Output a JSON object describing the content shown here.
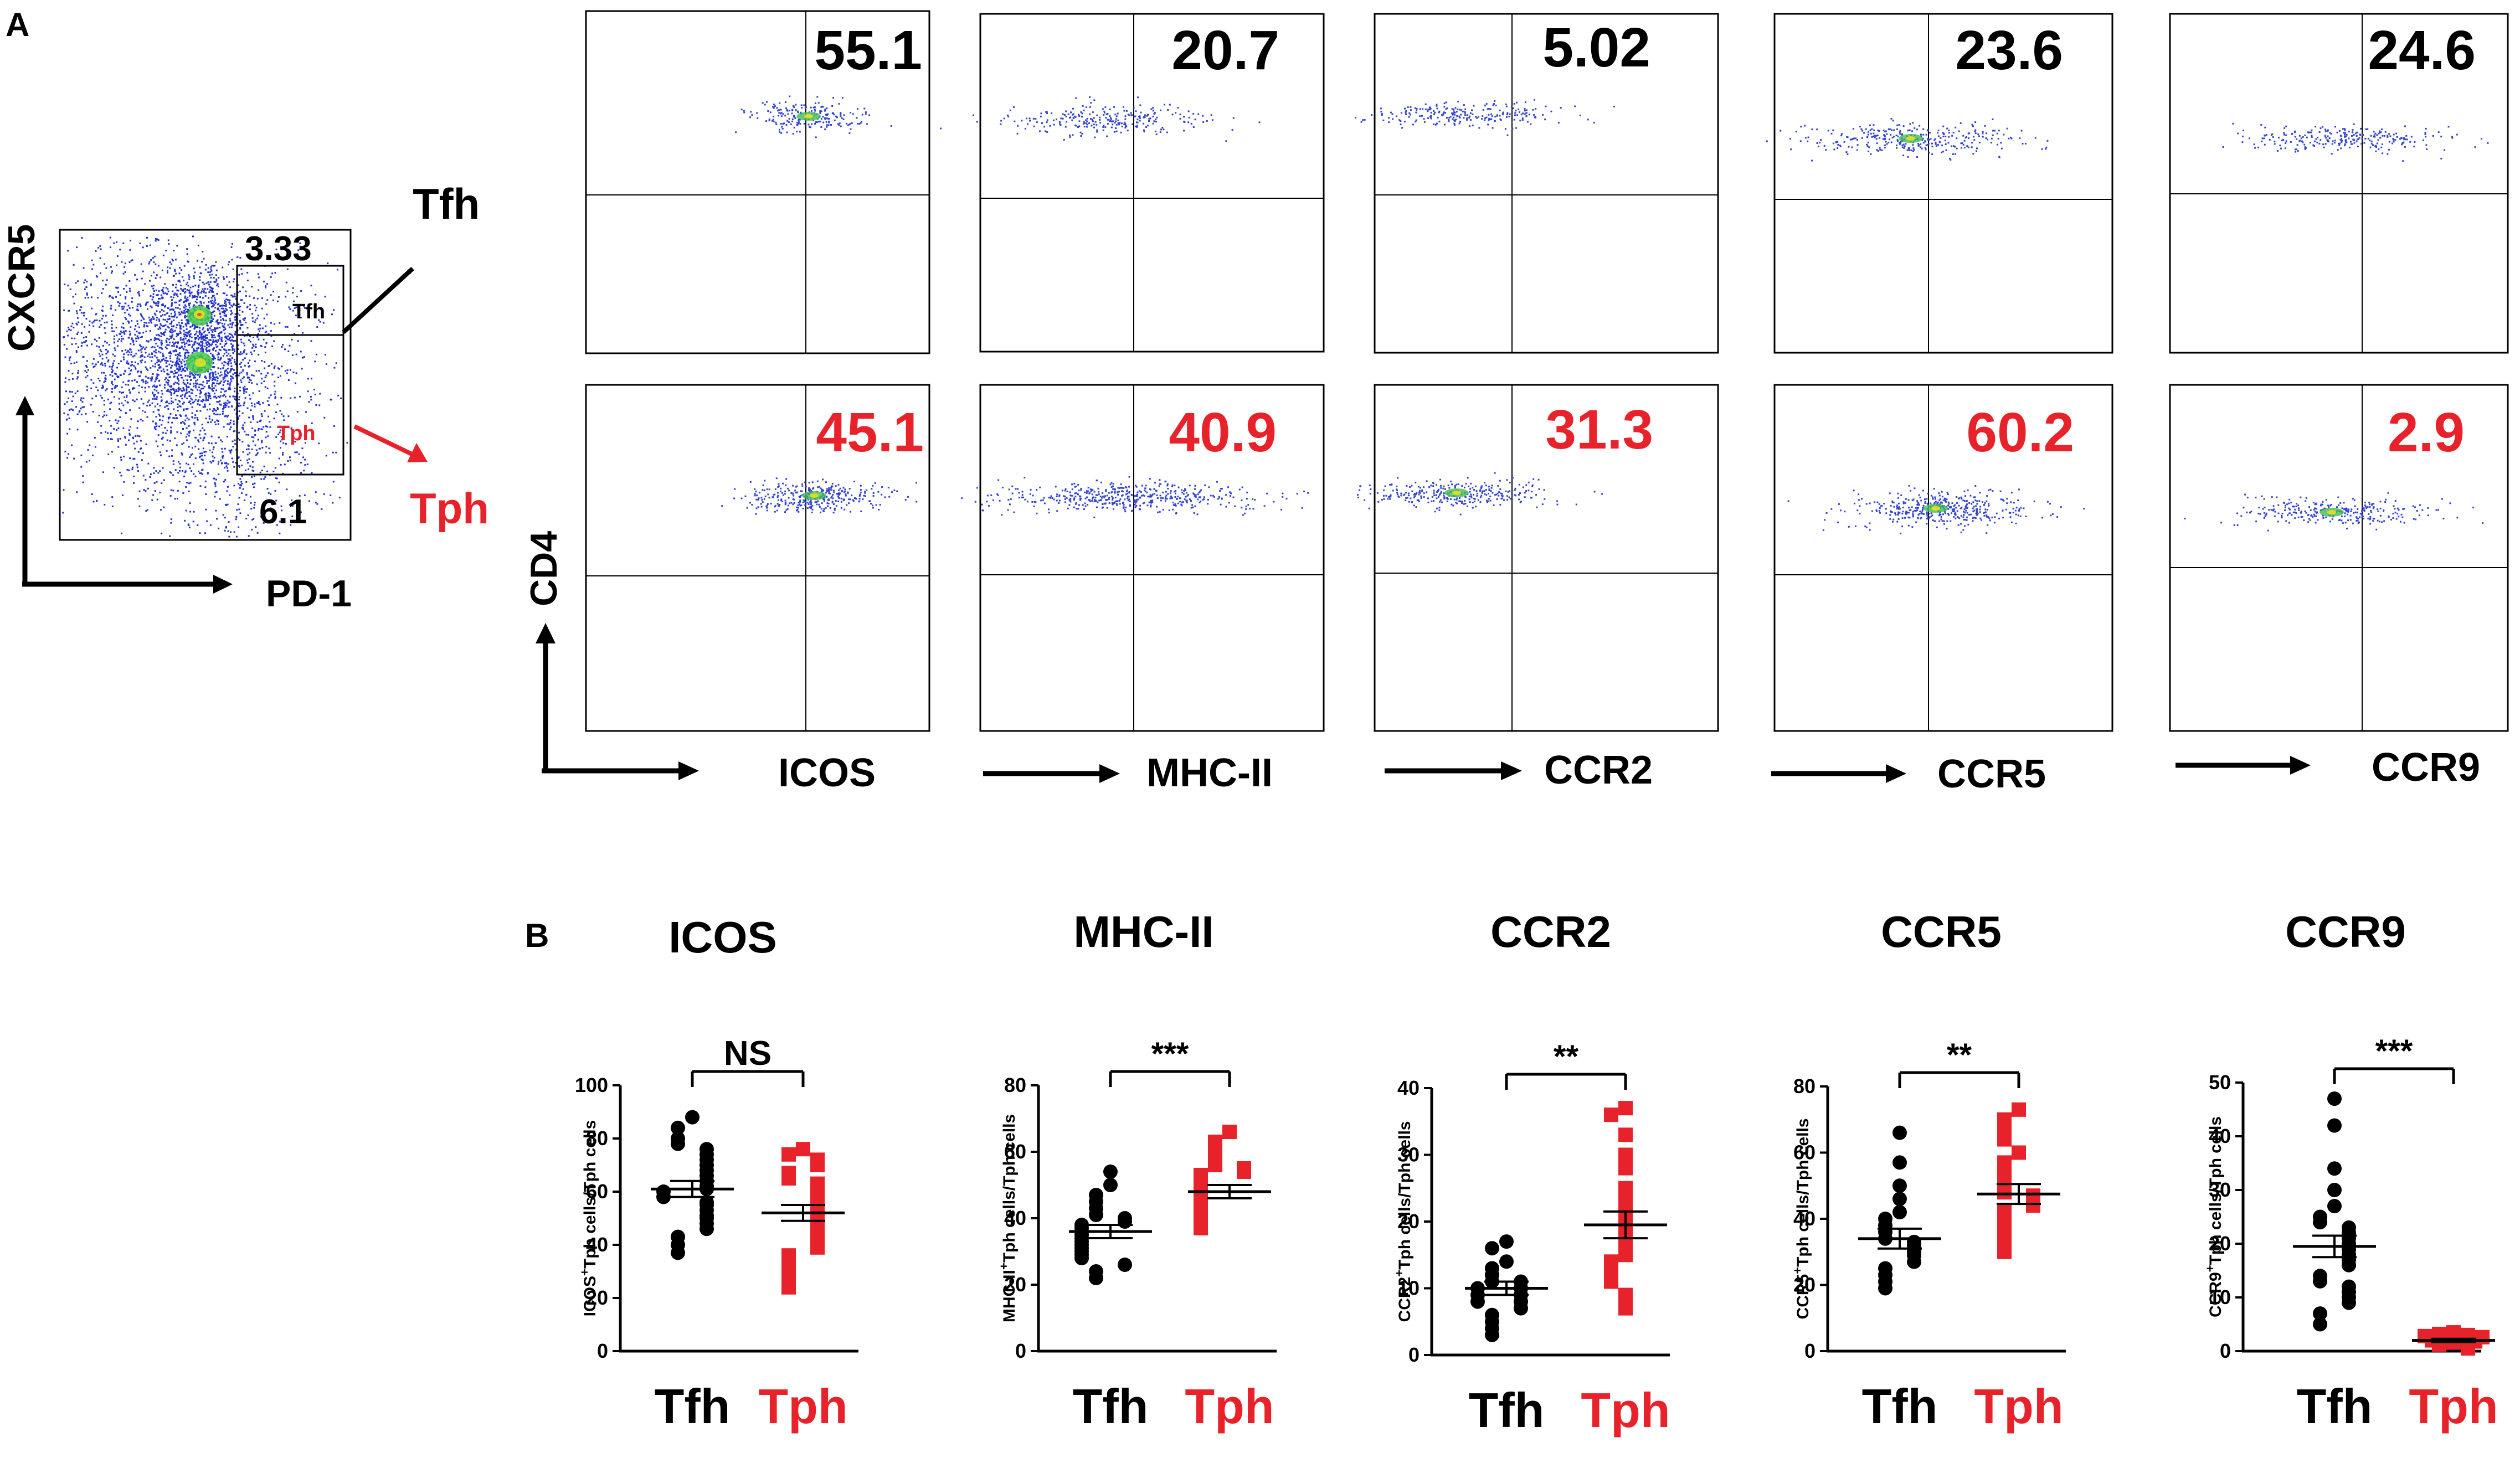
{
  "figure": {
    "panel_a_label": "A",
    "panel_b_label": "B",
    "colors": {
      "tfh": "#000000",
      "tph": "#e8222a",
      "axis": "#000000",
      "gate": "#000000"
    }
  },
  "gating_plot": {
    "y_label": "CXCR5",
    "x_label": "PD-1",
    "gate_tfh_label": "Tfh",
    "gate_tph_label": "Tph",
    "tfh_percent": "3.33",
    "tph_percent": "6.1",
    "arrow_tfh_label": "Tfh",
    "arrow_tph_label": "Tph"
  },
  "flow_panels": {
    "y_label": "CD4",
    "markers": [
      "ICOS",
      "MHC-II",
      "CCR2",
      "CCR5",
      "CCR9"
    ],
    "tfh_percents": [
      "55.1",
      "20.7",
      "5.02",
      "23.6",
      "24.6"
    ],
    "tph_percents": [
      "45.1",
      "40.9",
      "31.3",
      "60.2",
      "2.9"
    ]
  },
  "chart_data": [
    {
      "type": "scatter",
      "title": "ICOS",
      "ylabel": "ICOS+Tph cells/Tph cells",
      "ylabel_main": "ICOS",
      "ylabel_sup": "+",
      "ylabel_rest": "Tph cells/Tph cells",
      "ylim": [
        0,
        100
      ],
      "yticks": [
        "0",
        "20",
        "40",
        "60",
        "80",
        "100"
      ],
      "categories": [
        "Tfh",
        "Tph"
      ],
      "significance": "NS",
      "series": [
        {
          "name": "Tfh",
          "marker": "circle",
          "mean": 61,
          "sem": 3,
          "values": [
            88,
            84,
            80,
            78,
            76,
            74,
            72,
            70,
            68,
            66,
            64,
            62,
            61,
            60,
            58,
            56,
            55,
            53,
            51,
            50,
            48,
            46,
            43,
            40,
            37
          ]
        },
        {
          "name": "Tph",
          "marker": "square",
          "mean": 52,
          "sem": 3,
          "values": [
            76,
            74,
            72,
            70,
            67,
            65,
            63,
            61,
            59,
            57,
            55,
            53,
            51,
            49,
            47,
            45,
            43,
            41,
            39,
            36,
            33,
            30,
            27,
            24
          ]
        }
      ]
    },
    {
      "type": "scatter",
      "title": "MHC-II",
      "ylabel": "MHC-II+Tph cells/Tph cells",
      "ylabel_main": "MHC-II",
      "ylabel_sup": "+",
      "ylabel_rest": "Tph cells/Tph cells",
      "ylim": [
        0,
        80
      ],
      "yticks": [
        "0",
        "20",
        "40",
        "60",
        "80"
      ],
      "categories": [
        "Tfh",
        "Tph"
      ],
      "significance": "***",
      "series": [
        {
          "name": "Tfh",
          "marker": "circle",
          "mean": 36,
          "sem": 2,
          "values": [
            54,
            50,
            47,
            45,
            43,
            41,
            40,
            39,
            38,
            37,
            36,
            35,
            34,
            33,
            32,
            31,
            30,
            29,
            28,
            26,
            24,
            22
          ]
        },
        {
          "name": "Tph",
          "marker": "square",
          "mean": 48,
          "sem": 2,
          "values": [
            66,
            63,
            60,
            58,
            56,
            55,
            54,
            53,
            52,
            51,
            50,
            49,
            48,
            47,
            46,
            45,
            44,
            43,
            42,
            41,
            40,
            39,
            38,
            37
          ]
        }
      ]
    },
    {
      "type": "scatter",
      "title": "CCR2",
      "ylabel": "CCR2+Tph cells/Tph cells",
      "ylabel_main": "CCR2",
      "ylabel_sup": "+",
      "ylabel_rest": "Tph cells/Tph cells",
      "ylim": [
        0,
        40
      ],
      "yticks": [
        "0",
        "10",
        "20",
        "30",
        "40"
      ],
      "categories": [
        "Tfh",
        "Tph"
      ],
      "significance": "**",
      "series": [
        {
          "name": "Tfh",
          "marker": "circle",
          "mean": 10,
          "sem": 1,
          "values": [
            17,
            16,
            14,
            13,
            12,
            11,
            11,
            10,
            10,
            9,
            9,
            8,
            8,
            7,
            6,
            5,
            4,
            3
          ]
        },
        {
          "name": "Tph",
          "marker": "square",
          "mean": 19.5,
          "sem": 2,
          "values": [
            37,
            36,
            33,
            30,
            28,
            25,
            23,
            21,
            19,
            17,
            15,
            14,
            13,
            12,
            11,
            9,
            7
          ]
        }
      ]
    },
    {
      "type": "scatter",
      "title": "CCR5",
      "ylabel": "CCR5+Tph cells/Tph cells",
      "ylabel_main": "CCR5",
      "ylabel_sup": "+",
      "ylabel_rest": "Tph cells/Tph cells",
      "ylim": [
        0,
        80
      ],
      "yticks": [
        "0",
        "20",
        "40",
        "60",
        "80"
      ],
      "categories": [
        "Tfh",
        "Tph"
      ],
      "significance": "**",
      "series": [
        {
          "name": "Tfh",
          "marker": "circle",
          "mean": 34,
          "sem": 3,
          "values": [
            66,
            57,
            50,
            46,
            42,
            40,
            38,
            36,
            34,
            33,
            32,
            30,
            29,
            27,
            25,
            23,
            21,
            19
          ]
        },
        {
          "name": "Tph",
          "marker": "square",
          "mean": 47.5,
          "sem": 3,
          "values": [
            73,
            70,
            67,
            64,
            60,
            57,
            54,
            52,
            50,
            48,
            47,
            46,
            44,
            42,
            40,
            38,
            36,
            33,
            30
          ]
        }
      ]
    },
    {
      "type": "scatter",
      "title": "CCR9",
      "ylabel": "CCR9+Tph cells/Tph cells",
      "ylabel_main": "CCR9",
      "ylabel_sup": "+",
      "ylabel_rest": "Tph cells/Tph cells",
      "ylim": [
        0,
        50
      ],
      "yticks": [
        "0",
        "10",
        "20",
        "30",
        "40",
        "50"
      ],
      "categories": [
        "Tfh",
        "Tph"
      ],
      "significance": "***",
      "series": [
        {
          "name": "Tfh",
          "marker": "circle",
          "mean": 19.5,
          "sem": 2,
          "values": [
            47,
            42,
            34,
            30,
            27,
            25,
            24,
            23,
            22,
            21,
            20,
            19,
            18,
            17,
            16,
            14,
            13,
            12,
            11,
            10,
            9,
            7,
            5
          ]
        },
        {
          "name": "Tph",
          "marker": "square",
          "mean": 2,
          "sem": 0.3,
          "values": [
            3.5,
            3.2,
            3,
            2.8,
            2.6,
            2.4,
            2.2,
            2,
            1.8,
            1.6,
            1.4,
            1.2,
            1,
            0.8,
            0.6,
            0.5
          ]
        }
      ]
    }
  ]
}
